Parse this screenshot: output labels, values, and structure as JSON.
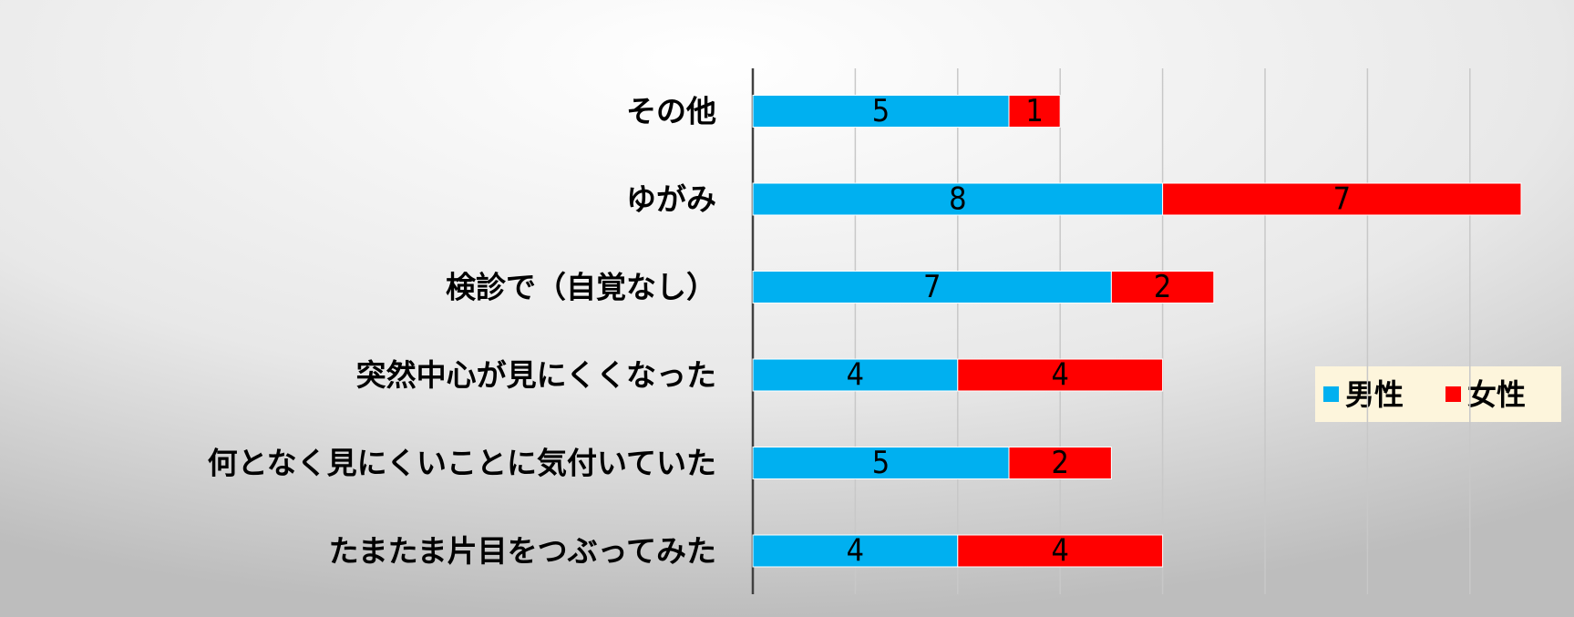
{
  "chart_data": {
    "type": "stacked-bar-horizontal",
    "categories": [
      "その他",
      "ゆがみ",
      "検診で（自覚なし）",
      "突然中心が見にくくなった",
      "何となく見にくいことに気付いていた",
      "たまたま片目をつぶってみた"
    ],
    "series": [
      {
        "name": "男性",
        "color": "#00b0f0",
        "values": [
          5,
          8,
          7,
          4,
          5,
          4
        ]
      },
      {
        "name": "女性",
        "color": "#ff0000",
        "values": [
          1,
          7,
          2,
          4,
          2,
          4
        ]
      }
    ],
    "xlim": [
      0,
      16
    ],
    "xticks": [
      0,
      2,
      4,
      6,
      8,
      10,
      12,
      14
    ],
    "grid": true,
    "legend": "right"
  }
}
